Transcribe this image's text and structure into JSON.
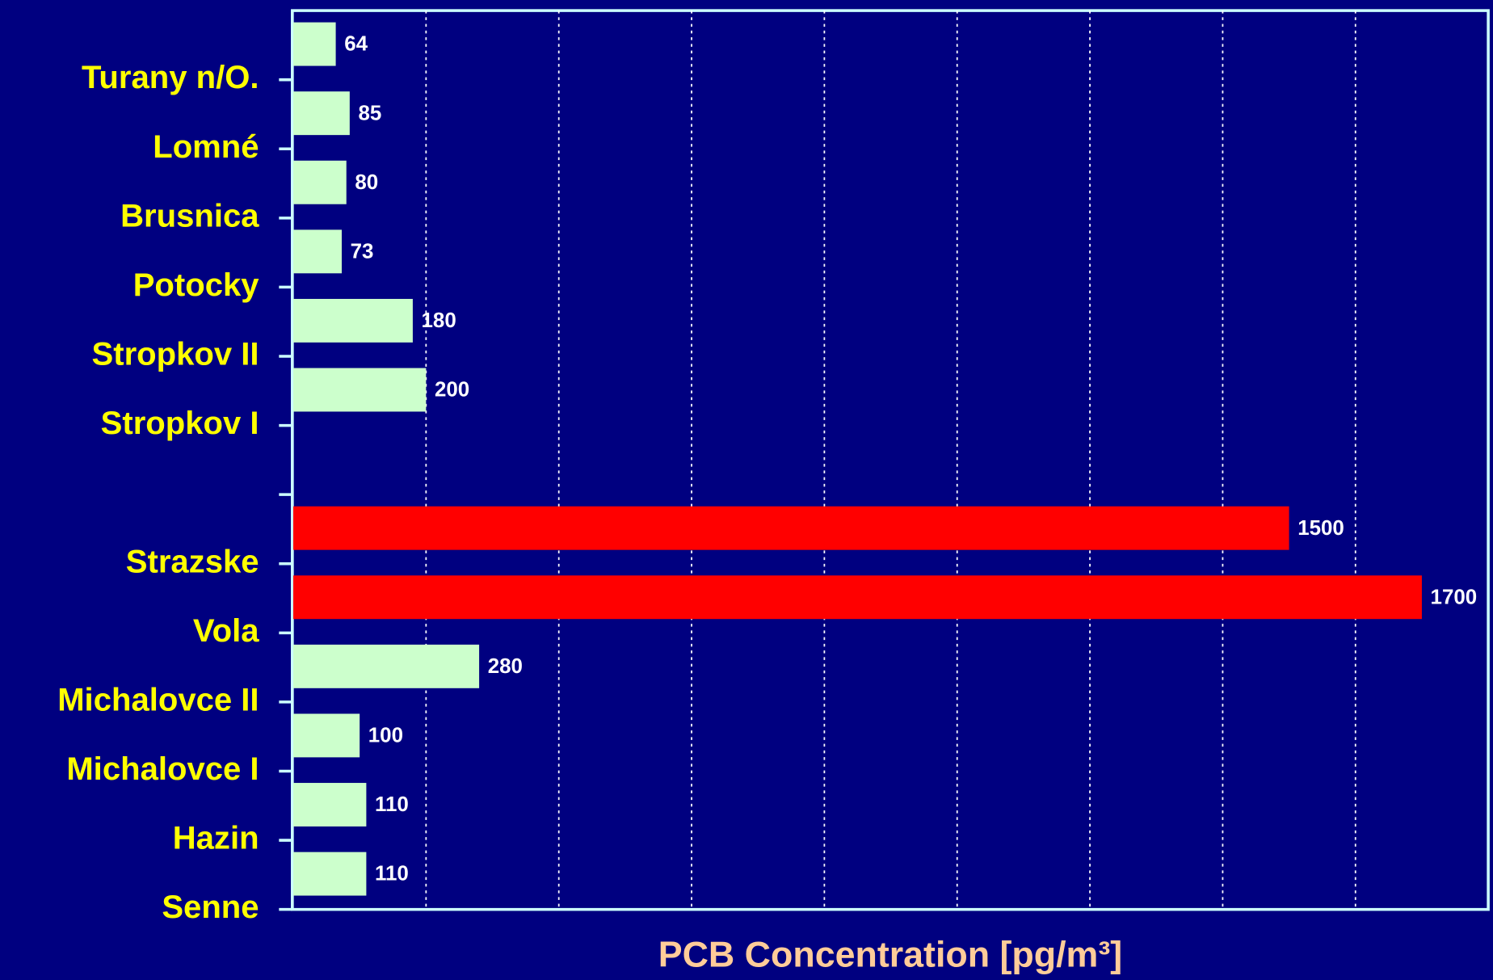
{
  "chart_data": {
    "type": "hbar",
    "categories": [
      "Turany n/O.",
      "Lomné",
      "Brusnica",
      "Potocky",
      "Stropkov II",
      "Stropkov I",
      null,
      "Strazske",
      "Vola",
      "Michalovce II",
      "Michalovce I",
      "Hazin",
      "Senne"
    ],
    "values": [
      64,
      85,
      80,
      73,
      180,
      200,
      null,
      1500,
      1700,
      280,
      100,
      110,
      110
    ],
    "colors": [
      "#ccffcc",
      "#ccffcc",
      "#ccffcc",
      "#ccffcc",
      "#ccffcc",
      "#ccffcc",
      null,
      "#ff0000",
      "#ff0000",
      "#ccffcc",
      "#ccffcc",
      "#ccffcc",
      "#ccffcc"
    ],
    "xlabel": "PCB Concentration [pg/m³]",
    "xlim": [
      0,
      1800
    ],
    "xticks": [
      200,
      400,
      600,
      800,
      1000,
      1200,
      1400,
      1600
    ],
    "grid": true
  }
}
